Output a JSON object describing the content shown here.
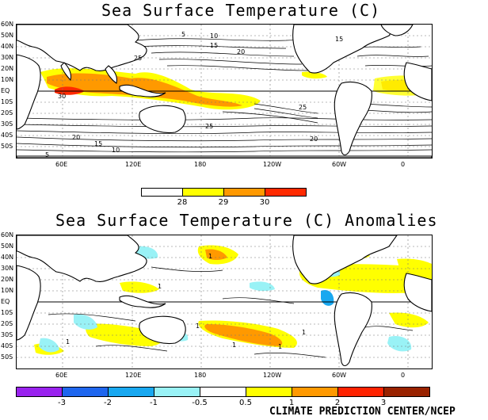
{
  "panels": [
    {
      "title": "Sea Surface Temperature (C)",
      "lat_ticks": [
        "60N",
        "50N",
        "40N",
        "30N",
        "20N",
        "10N",
        "EQ",
        "10S",
        "20S",
        "30S",
        "40S",
        "50S"
      ],
      "lon_ticks": [
        "60E",
        "120E",
        "180",
        "120W",
        "60W",
        "0"
      ],
      "contour_labels": [
        "5",
        "10",
        "15",
        "20",
        "25",
        "30",
        "25",
        "20",
        "15",
        "10",
        "5",
        "15",
        "20",
        "25"
      ],
      "colorbar": {
        "labels": [
          "28",
          "29",
          "30"
        ],
        "colors": [
          "#ffffff",
          "#ffff00",
          "#ff9900",
          "#ff2a00"
        ]
      }
    },
    {
      "title": "Sea Surface Temperature (C) Anomalies",
      "lat_ticks": [
        "60N",
        "50N",
        "40N",
        "30N",
        "20N",
        "10N",
        "EQ",
        "10S",
        "20S",
        "30S",
        "40S",
        "50S"
      ],
      "lon_ticks": [
        "60E",
        "120E",
        "180",
        "120W",
        "60W",
        "0"
      ],
      "contour_labels": [
        "1",
        "1",
        "1",
        "1",
        "1",
        "1",
        "1"
      ],
      "colorbar": {
        "labels": [
          "-3",
          "-2",
          "-1",
          "-0.5",
          "0.5",
          "1",
          "2",
          "3"
        ],
        "colors": [
          "#9922ee",
          "#1f66ee",
          "#19a8f0",
          "#99f2f6",
          "#ffffff",
          "#ffff00",
          "#ff9900",
          "#ff2200",
          "#992200"
        ]
      }
    }
  ],
  "credit": "CLIMATE PREDICTION CENTER/NCEP"
}
